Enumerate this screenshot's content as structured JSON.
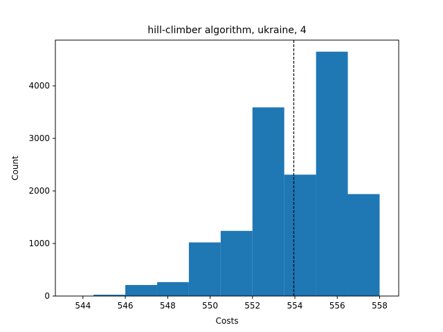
{
  "chart_data": {
    "type": "bar",
    "title": "hill-climber algorithm, ukraine, 4",
    "xlabel": "Costs",
    "ylabel": "Count",
    "bar_color": "#1f77b4",
    "line_color": "#000000",
    "xlim": [
      542.7,
      558.9
    ],
    "ylim": [
      0,
      4870
    ],
    "x_ticks": [
      544,
      546,
      548,
      550,
      552,
      554,
      556,
      558
    ],
    "y_ticks": [
      0,
      1000,
      2000,
      3000,
      4000
    ],
    "bins": [
      {
        "start": 543,
        "end": 544.5,
        "value": 0
      },
      {
        "start": 544.5,
        "end": 546,
        "value": 25
      },
      {
        "start": 546,
        "end": 547.5,
        "value": 210
      },
      {
        "start": 547.5,
        "end": 549,
        "value": 265
      },
      {
        "start": 549,
        "end": 550.5,
        "value": 1020
      },
      {
        "start": 550.5,
        "end": 552,
        "value": 1240
      },
      {
        "start": 552,
        "end": 553.5,
        "value": 3590
      },
      {
        "start": 553.5,
        "end": 555,
        "value": 2310
      },
      {
        "start": 555,
        "end": 556.5,
        "value": 4650
      },
      {
        "start": 556.5,
        "end": 558,
        "value": 1940
      }
    ],
    "mean_line": {
      "x": 553.95,
      "style": "dashed"
    },
    "grid": false,
    "legend": "none"
  }
}
